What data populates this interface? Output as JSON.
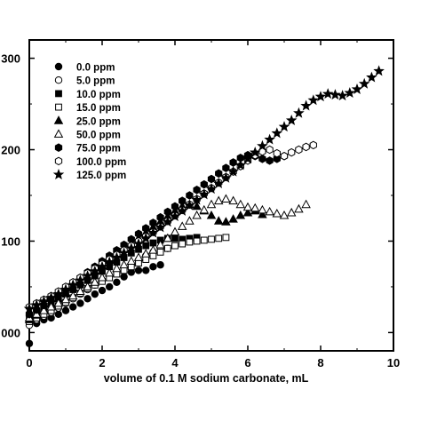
{
  "chart_data": {
    "type": "scatter",
    "title": "",
    "xlabel": "volume of 0.1 M sodium carbonate, mL",
    "ylabel": "",
    "xlim": [
      0,
      10
    ],
    "ylim": [
      -20,
      320
    ],
    "x_ticks": [
      0,
      2,
      4,
      6,
      8,
      10
    ],
    "x_tick_labels": [
      "0",
      "2",
      "4",
      "6",
      "8",
      "10"
    ],
    "y_ticks": [
      0,
      100,
      200,
      300
    ],
    "y_tick_labels": [
      "000",
      "100",
      "200",
      "300"
    ],
    "grid": false,
    "legend_position": "top-left",
    "series": [
      {
        "name": "0.0 ppm",
        "marker": "circle-filled",
        "x": [
          0.0,
          0.2,
          0.4,
          0.6,
          0.8,
          1.0,
          1.2,
          1.4,
          1.6,
          1.8,
          2.0,
          2.2,
          2.4,
          2.6,
          2.8,
          3.0,
          3.2,
          3.4,
          3.6
        ],
        "y": [
          -12,
          10,
          14,
          16,
          20,
          24,
          28,
          32,
          37,
          42,
          46,
          50,
          55,
          61,
          66,
          68,
          68,
          72,
          74
        ]
      },
      {
        "name": "5.0 ppm",
        "marker": "circle-open",
        "x": [
          0.0,
          0.2,
          0.4,
          0.6,
          0.8,
          1.0,
          1.2,
          1.4,
          1.6,
          1.8,
          2.0,
          2.2,
          2.4,
          2.6,
          2.8,
          3.0,
          3.2,
          3.4,
          3.6,
          3.8
        ],
        "y": [
          8,
          14,
          18,
          22,
          27,
          32,
          37,
          42,
          47,
          52,
          57,
          62,
          66,
          70,
          74,
          79,
          84,
          88,
          91,
          92
        ]
      },
      {
        "name": "10.0 ppm",
        "marker": "square-filled",
        "x": [
          0.0,
          0.2,
          0.4,
          0.6,
          0.8,
          1.0,
          1.2,
          1.4,
          1.6,
          1.8,
          2.0,
          2.2,
          2.4,
          2.6,
          2.8,
          3.0,
          3.2,
          3.4,
          3.6,
          3.8,
          4.0,
          4.2,
          4.4,
          4.6
        ],
        "y": [
          18,
          22,
          27,
          32,
          37,
          42,
          47,
          52,
          57,
          62,
          67,
          72,
          77,
          82,
          87,
          91,
          95,
          98,
          101,
          103,
          103,
          102,
          103,
          104
        ]
      },
      {
        "name": "15.0 ppm",
        "marker": "square-open",
        "x": [
          0.0,
          0.2,
          0.4,
          0.6,
          0.8,
          1.0,
          1.2,
          1.4,
          1.6,
          1.8,
          2.0,
          2.2,
          2.4,
          2.6,
          2.8,
          3.0,
          3.2,
          3.4,
          3.6,
          3.8,
          4.0,
          4.2,
          4.4,
          4.6,
          4.8,
          5.0,
          5.2,
          5.4
        ],
        "y": [
          12,
          16,
          20,
          24,
          29,
          33,
          38,
          43,
          48,
          52,
          56,
          60,
          64,
          68,
          72,
          76,
          80,
          84,
          88,
          92,
          95,
          97,
          99,
          100,
          101,
          102,
          103,
          104
        ]
      },
      {
        "name": "25.0 ppm",
        "marker": "triangle-filled",
        "x": [
          0.0,
          0.2,
          0.4,
          0.6,
          0.8,
          1.0,
          1.2,
          1.4,
          1.6,
          1.8,
          2.0,
          2.2,
          2.4,
          2.6,
          2.8,
          3.0,
          3.2,
          3.4,
          3.6,
          3.8,
          4.0,
          4.2,
          4.4,
          4.6,
          4.8,
          5.0,
          5.2,
          5.4,
          5.6,
          5.8,
          6.0,
          6.2,
          6.4
        ],
        "y": [
          14,
          19,
          25,
          31,
          37,
          43,
          49,
          55,
          61,
          67,
          73,
          79,
          85,
          91,
          97,
          103,
          109,
          115,
          121,
          127,
          133,
          138,
          140,
          138,
          133,
          128,
          122,
          121,
          124,
          128,
          131,
          133,
          129
        ]
      },
      {
        "name": "50.0 ppm",
        "marker": "triangle-open",
        "x": [
          0.0,
          0.2,
          0.4,
          0.6,
          0.8,
          1.0,
          1.2,
          1.4,
          1.6,
          1.8,
          2.0,
          2.2,
          2.4,
          2.6,
          2.8,
          3.0,
          3.2,
          3.4,
          3.6,
          3.8,
          4.0,
          4.2,
          4.4,
          4.6,
          4.8,
          5.0,
          5.2,
          5.4,
          5.6,
          5.8,
          6.0,
          6.2,
          6.4,
          6.6,
          6.8,
          7.0,
          7.2,
          7.4,
          7.6
        ],
        "y": [
          16,
          20,
          24,
          28,
          32,
          36,
          40,
          45,
          50,
          55,
          60,
          65,
          70,
          74,
          78,
          82,
          86,
          90,
          96,
          103,
          110,
          116,
          122,
          128,
          134,
          140,
          144,
          146,
          144,
          140,
          137,
          136,
          134,
          132,
          130,
          128,
          131,
          135,
          140
        ]
      },
      {
        "name": "75.0 ppm",
        "marker": "hexagon-filled",
        "x": [
          0.0,
          0.2,
          0.4,
          0.6,
          0.8,
          1.0,
          1.2,
          1.4,
          1.6,
          1.8,
          2.0,
          2.2,
          2.4,
          2.6,
          2.8,
          3.0,
          3.2,
          3.4,
          3.6,
          3.8,
          4.0,
          4.2,
          4.4,
          4.6,
          4.8,
          5.0,
          5.2,
          5.4,
          5.6,
          5.8,
          6.0,
          6.2,
          6.4,
          6.6,
          6.8,
          7.0
        ],
        "y": [
          20,
          25,
          30,
          36,
          42,
          48,
          54,
          60,
          66,
          72,
          78,
          84,
          90,
          96,
          102,
          108,
          114,
          120,
          126,
          132,
          138,
          144,
          150,
          156,
          162,
          168,
          174,
          180,
          186,
          191,
          194,
          193,
          190,
          188,
          190,
          193
        ]
      },
      {
        "name": "100.0 ppm",
        "marker": "hexagon-open",
        "x": [
          0.0,
          0.2,
          0.4,
          0.6,
          0.8,
          1.0,
          1.2,
          1.4,
          1.6,
          1.8,
          2.0,
          2.2,
          2.4,
          2.6,
          2.8,
          3.0,
          3.2,
          3.4,
          3.6,
          3.8,
          4.0,
          4.2,
          4.4,
          4.6,
          4.8,
          5.0,
          5.2,
          5.4,
          5.6,
          5.8,
          6.0,
          6.2,
          6.4,
          6.6,
          6.8,
          7.0,
          7.2,
          7.4,
          7.6,
          7.8
        ],
        "y": [
          28,
          32,
          36,
          40,
          45,
          50,
          55,
          60,
          65,
          70,
          75,
          80,
          85,
          90,
          95,
          100,
          105,
          110,
          116,
          122,
          128,
          134,
          140,
          146,
          152,
          158,
          164,
          170,
          176,
          182,
          188,
          194,
          198,
          200,
          196,
          193,
          197,
          200,
          203,
          205
        ]
      },
      {
        "name": "125.0 ppm",
        "marker": "star-filled",
        "x": [
          0.0,
          0.2,
          0.4,
          0.6,
          0.8,
          1.0,
          1.2,
          1.4,
          1.6,
          1.8,
          2.0,
          2.2,
          2.4,
          2.6,
          2.8,
          3.0,
          3.2,
          3.4,
          3.6,
          3.8,
          4.0,
          4.2,
          4.4,
          4.6,
          4.8,
          5.0,
          5.2,
          5.4,
          5.6,
          5.8,
          6.0,
          6.2,
          6.4,
          6.6,
          6.8,
          7.0,
          7.2,
          7.4,
          7.6,
          7.8,
          8.0,
          8.2,
          8.4,
          8.6,
          8.8,
          9.0,
          9.2,
          9.4,
          9.6
        ],
        "y": [
          26,
          30,
          34,
          38,
          42,
          47,
          52,
          57,
          62,
          67,
          72,
          77,
          82,
          87,
          92,
          97,
          103,
          109,
          115,
          121,
          127,
          133,
          139,
          145,
          151,
          157,
          163,
          169,
          176,
          183,
          190,
          197,
          204,
          211,
          218,
          225,
          232,
          240,
          248,
          254,
          258,
          261,
          260,
          259,
          262,
          266,
          272,
          279,
          286
        ]
      }
    ]
  }
}
